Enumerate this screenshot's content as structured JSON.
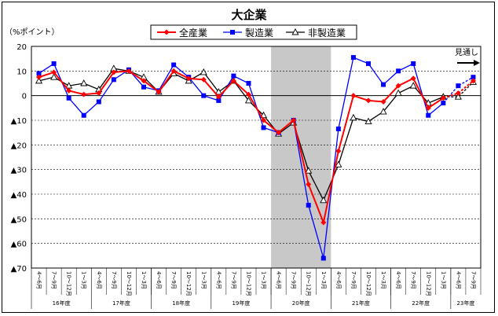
{
  "chart_data": {
    "type": "line",
    "title": "大企業",
    "ylabel": "（%ポイント）",
    "ylim": [
      -70,
      20
    ],
    "yticks": [
      20,
      10,
      0,
      -10,
      -20,
      -30,
      -40,
      -50,
      -60,
      -70
    ],
    "ytick_labels": [
      "20",
      "10",
      "0",
      "▲10",
      "▲20",
      "▲30",
      "▲40",
      "▲50",
      "▲60",
      "▲70"
    ],
    "grid": true,
    "legend_position": "top-center",
    "categories": [
      "4～6月",
      "7～9月",
      "10～12月",
      "1～3月",
      "4～6月",
      "7～9月",
      "10～12月",
      "1～3月",
      "4～6月",
      "7～9月",
      "10～12月",
      "1～3月",
      "4～6月",
      "7～9月",
      "10～12月",
      "1～3月",
      "4～6月",
      "7～9月",
      "10～12月",
      "1～3月",
      "4～6月",
      "7～9月",
      "10～12月",
      "1～3月",
      "4～6月",
      "7～9月",
      "10～12月",
      "1～3月",
      "4～6月",
      "7～9月"
    ],
    "fiscal_years": [
      {
        "label": "16年度",
        "start": 0,
        "span": 4
      },
      {
        "label": "17年度",
        "start": 4,
        "span": 4
      },
      {
        "label": "18年度",
        "start": 8,
        "span": 4
      },
      {
        "label": "19年度",
        "start": 12,
        "span": 4
      },
      {
        "label": "20年度",
        "start": 16,
        "span": 4
      },
      {
        "label": "21年度",
        "start": 20,
        "span": 4
      },
      {
        "label": "22年度",
        "start": 24,
        "span": 4
      },
      {
        "label": "23年度",
        "start": 28,
        "span": 2
      }
    ],
    "shaded_range": [
      16,
      19
    ],
    "forecast_start": 27,
    "forecast_label": "見通し",
    "series": [
      {
        "name": "全産業",
        "color": "#ff0000",
        "marker": "diamond",
        "values": [
          7.5,
          9.5,
          2,
          0.5,
          1,
          9.5,
          10,
          6,
          1.5,
          10,
          7,
          6.5,
          -0.5,
          6,
          0.5,
          -10,
          -15,
          -10,
          -36,
          -51.5,
          -22.5,
          0,
          -2,
          -2.5,
          4,
          7,
          -5,
          -1,
          1,
          6
        ]
      },
      {
        "name": "製造業",
        "color": "#0000ff",
        "marker": "square",
        "values": [
          9,
          13,
          -1,
          -8,
          -2.5,
          6.5,
          10.5,
          3.5,
          2,
          12.5,
          7.5,
          0,
          -2,
          8,
          5,
          -13,
          -15,
          -10,
          -44.5,
          -66,
          -13.5,
          15.5,
          13,
          4.5,
          10,
          13,
          -8,
          -3,
          4,
          7.5
        ]
      },
      {
        "name": "非製造業",
        "color": "#000000",
        "marker": "triangle",
        "values": [
          6,
          7.5,
          4,
          5,
          2.5,
          11,
          10,
          7.5,
          1.5,
          9,
          6,
          9.5,
          1.5,
          6,
          -2,
          -8,
          -15.5,
          -11,
          -30.5,
          -42.5,
          -28,
          -9,
          -10.5,
          -6.5,
          1,
          4,
          -3,
          -0.5,
          -0.5,
          5.5
        ]
      }
    ]
  }
}
